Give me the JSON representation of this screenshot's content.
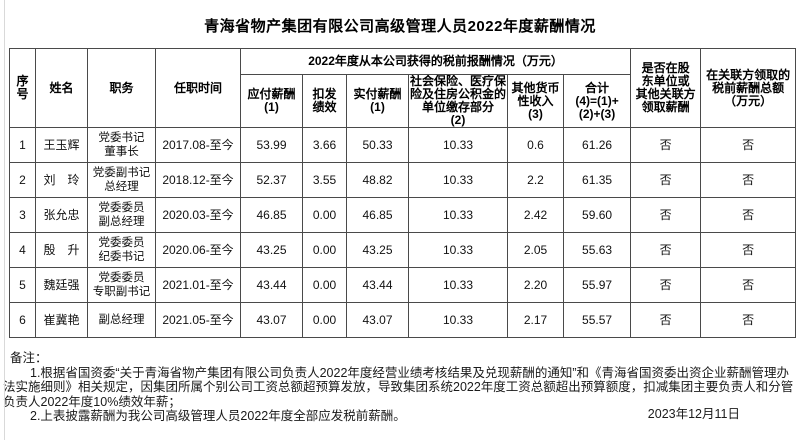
{
  "page": {
    "title": "青海省物产集团有限公司高级管理人员2022年度薪酬情况",
    "date": "2023年12月11日"
  },
  "table": {
    "col_keys": [
      "seq",
      "name",
      "position",
      "tenure",
      "payable",
      "deducted",
      "paid",
      "insurance",
      "other-income",
      "total",
      "shareholder-pay",
      "related-pay"
    ],
    "group_header": "2022年度从本公司获得的税前报酬情况（万元）",
    "headers": {
      "seq": "序\n号",
      "name": "姓名",
      "position": "职务",
      "tenure": "任职时间",
      "payable": "应付薪酬\n(1)",
      "deducted": "扣发\n绩效",
      "paid": "实付薪酬\n(1)",
      "insurance": "社会保险、医疗保\n险及住房公积金的\n单位缴存部分\n(2)",
      "other_income": "其他货币\n性收入\n(3)",
      "total": "合计\n(4)=(1)+\n(2)+(3)",
      "shareholder_pay": "是否在股\n东单位或\n其他关联方\n领取薪酬",
      "related_pay": "在关联方领取的\n税前薪酬总额\n（万元）"
    },
    "rows": [
      [
        "1",
        "王玉辉",
        "党委书记\n董事长",
        "2017.08-至今",
        "53.99",
        "3.66",
        "50.33",
        "10.33",
        "0.6",
        "61.26",
        "否",
        "否"
      ],
      [
        "2",
        "刘　玲",
        "党委副书记\n总经理",
        "2018.12-至今",
        "52.37",
        "3.55",
        "48.82",
        "10.33",
        "2.2",
        "61.35",
        "否",
        "否"
      ],
      [
        "3",
        "张允忠",
        "党委委员\n副总经理",
        "2020.03-至今",
        "46.85",
        "0.00",
        "46.85",
        "10.33",
        "2.42",
        "59.60",
        "否",
        "否"
      ],
      [
        "4",
        "殷　升",
        "党委委员\n纪委书记",
        "2020.06-至今",
        "43.25",
        "0.00",
        "43.25",
        "10.33",
        "2.05",
        "55.63",
        "否",
        "否"
      ],
      [
        "5",
        "魏廷强",
        "党委委员\n专职副书记",
        "2021.01-至今",
        "43.44",
        "0.00",
        "43.44",
        "10.33",
        "2.20",
        "55.97",
        "否",
        "否"
      ],
      [
        "6",
        "崔冀艳",
        "副总经理",
        "2021.05-至今",
        "43.07",
        "0.00",
        "43.07",
        "10.33",
        "2.17",
        "55.57",
        "否",
        "否"
      ]
    ]
  },
  "notes": {
    "label": "备注：",
    "note1": "1.根据省国资委“关于青海省物产集团有限公司负责人2022年度经营业绩考核结果及兑现薪酬的通知”和《青海省国资委出资企业薪酬管理办法实施细则》相关规定，因集团所属个别公司工资总额超预算发放，导致集团系统2022年度工资总额超出预算额度，扣减集团主要负责人和分管负责人2022年度10%绩效年薪；",
    "note2": "2.上表披露薪酬为我公司高级管理人员2022年度全部应发税前薪酬。"
  }
}
